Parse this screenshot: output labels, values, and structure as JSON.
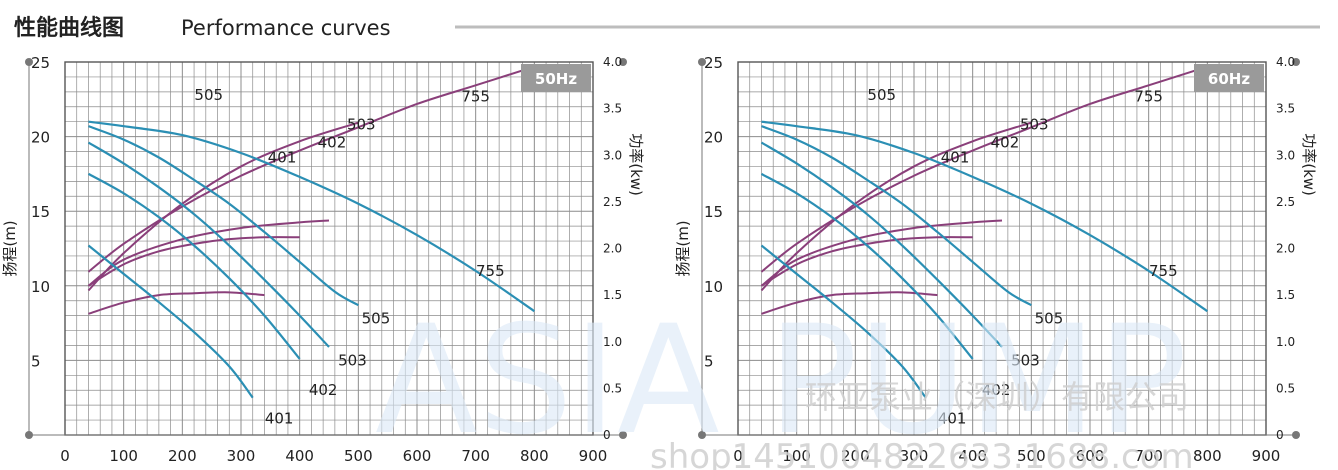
{
  "header": {
    "title_cn": "性能曲线图",
    "title_en": "Performance curves"
  },
  "watermark": {
    "brand": "ASIA PUMP",
    "company": "环亚泵业（深圳）有限公司",
    "url": "shop1451004822633.1688.com"
  },
  "colors": {
    "head_curve": "#2b8fb4",
    "power_curve": "#8a3f7a",
    "grid": "#8c8c8c",
    "badge": "#9a9a9a"
  },
  "chart_data": [
    {
      "type": "line",
      "frequency_label": "50Hz",
      "ylabel": "扬程(m)",
      "y2label": "功率(kw)",
      "xlim": [
        0,
        900
      ],
      "ylim": [
        0,
        25
      ],
      "y2lim": [
        0,
        4.0
      ],
      "x_ticks": [
        "0",
        "100",
        "200",
        "300",
        "400",
        "500",
        "600",
        "700",
        "800",
        "900"
      ],
      "y_ticks": [
        "5",
        "10",
        "15",
        "20",
        "25"
      ],
      "y2_ticks": [
        "0",
        "0.5",
        "1.0",
        "1.5",
        "2.0",
        "2.5",
        "3.0",
        "3.5",
        "4.0"
      ],
      "grid": true,
      "head_curves": [
        {
          "name": "401",
          "points": [
            [
              40,
              12.7
            ],
            [
              100,
              10.8
            ],
            [
              160,
              8.9
            ],
            [
              220,
              6.9
            ],
            [
              280,
              4.6
            ],
            [
              320,
              2.5
            ]
          ]
        },
        {
          "name": "402",
          "points": [
            [
              40,
              17.5
            ],
            [
              100,
              16.2
            ],
            [
              160,
              14.6
            ],
            [
              220,
              12.7
            ],
            [
              280,
              10.5
            ],
            [
              340,
              8.0
            ],
            [
              400,
              5.1
            ]
          ]
        },
        {
          "name": "503",
          "points": [
            [
              40,
              19.6
            ],
            [
              100,
              18.2
            ],
            [
              160,
              16.6
            ],
            [
              220,
              14.8
            ],
            [
              280,
              12.7
            ],
            [
              340,
              10.4
            ],
            [
              400,
              8.0
            ],
            [
              450,
              5.9
            ]
          ]
        },
        {
          "name": "505",
          "points": [
            [
              40,
              20.7
            ],
            [
              100,
              19.8
            ],
            [
              160,
              18.6
            ],
            [
              220,
              17.1
            ],
            [
              280,
              15.5
            ],
            [
              340,
              13.6
            ],
            [
              400,
              11.6
            ],
            [
              460,
              9.6
            ],
            [
              500,
              8.7
            ]
          ]
        },
        {
          "name": "755",
          "points": [
            [
              40,
              21.0
            ],
            [
              100,
              20.7
            ],
            [
              200,
              20.1
            ],
            [
              300,
              18.9
            ],
            [
              400,
              17.3
            ],
            [
              500,
              15.5
            ],
            [
              600,
              13.4
            ],
            [
              700,
              11.0
            ],
            [
              800,
              8.3
            ]
          ]
        }
      ],
      "power_curves": [
        {
          "name": "401",
          "points": [
            [
              40,
              1.3
            ],
            [
              100,
              1.42
            ],
            [
              160,
              1.5
            ],
            [
              220,
              1.52
            ],
            [
              280,
              1.53
            ],
            [
              340,
              1.5
            ]
          ]
        },
        {
          "name": "402",
          "points": [
            [
              40,
              1.6
            ],
            [
              100,
              1.83
            ],
            [
              160,
              1.97
            ],
            [
              220,
              2.05
            ],
            [
              280,
              2.1
            ],
            [
              340,
              2.12
            ],
            [
              400,
              2.12
            ]
          ]
        },
        {
          "name": "503",
          "points": [
            [
              40,
              1.6
            ],
            [
              100,
              1.88
            ],
            [
              200,
              2.1
            ],
            [
              300,
              2.22
            ],
            [
              400,
              2.28
            ],
            [
              450,
              2.3
            ]
          ]
        },
        {
          "name": "505",
          "points": [
            [
              40,
              1.55
            ],
            [
              100,
              1.95
            ],
            [
              200,
              2.48
            ],
            [
              300,
              2.88
            ],
            [
              400,
              3.15
            ],
            [
              500,
              3.35
            ]
          ]
        },
        {
          "name": "755",
          "points": [
            [
              40,
              1.75
            ],
            [
              100,
              2.05
            ],
            [
              200,
              2.45
            ],
            [
              300,
              2.78
            ],
            [
              400,
              3.05
            ],
            [
              500,
              3.3
            ],
            [
              600,
              3.55
            ],
            [
              700,
              3.75
            ],
            [
              800,
              3.95
            ]
          ]
        }
      ],
      "labels": [
        {
          "text": "505",
          "x": 245,
          "y": 22.8
        },
        {
          "text": "755",
          "x": 700,
          "y": 22.7
        },
        {
          "text": "503",
          "x": 505,
          "y": 20.8
        },
        {
          "text": "402",
          "x": 455,
          "y": 19.6
        },
        {
          "text": "401",
          "x": 370,
          "y": 18.6
        },
        {
          "text": "755",
          "x": 725,
          "y": 11.0
        },
        {
          "text": "505",
          "x": 530,
          "y": 7.8
        },
        {
          "text": "503",
          "x": 490,
          "y": 5.0
        },
        {
          "text": "402",
          "x": 440,
          "y": 3.0
        },
        {
          "text": "401",
          "x": 365,
          "y": 1.1
        }
      ]
    },
    {
      "type": "line",
      "frequency_label": "60Hz",
      "ylabel": "扬程(m)",
      "y2label": "功率(kw)",
      "xlim": [
        0,
        900
      ],
      "ylim": [
        0,
        25
      ],
      "y2lim": [
        0,
        4.0
      ],
      "x_ticks": [
        "0",
        "100",
        "200",
        "300",
        "400",
        "500",
        "600",
        "700",
        "800",
        "900"
      ],
      "y_ticks": [
        "5",
        "10",
        "15",
        "20",
        "25"
      ],
      "y2_ticks": [
        "0",
        "0.5",
        "1.0",
        "1.5",
        "2.0",
        "2.5",
        "3.0",
        "3.5",
        "4.0"
      ],
      "grid": true,
      "head_curves": [
        {
          "name": "401",
          "points": [
            [
              40,
              12.7
            ],
            [
              100,
              10.8
            ],
            [
              160,
              8.9
            ],
            [
              220,
              6.9
            ],
            [
              280,
              4.6
            ],
            [
              320,
              2.5
            ]
          ]
        },
        {
          "name": "402",
          "points": [
            [
              40,
              17.5
            ],
            [
              100,
              16.2
            ],
            [
              160,
              14.6
            ],
            [
              220,
              12.7
            ],
            [
              280,
              10.5
            ],
            [
              340,
              8.0
            ],
            [
              400,
              5.1
            ]
          ]
        },
        {
          "name": "503",
          "points": [
            [
              40,
              19.6
            ],
            [
              100,
              18.2
            ],
            [
              160,
              16.6
            ],
            [
              220,
              14.8
            ],
            [
              280,
              12.7
            ],
            [
              340,
              10.4
            ],
            [
              400,
              8.0
            ],
            [
              450,
              5.9
            ]
          ]
        },
        {
          "name": "505",
          "points": [
            [
              40,
              20.7
            ],
            [
              100,
              19.8
            ],
            [
              160,
              18.6
            ],
            [
              220,
              17.1
            ],
            [
              280,
              15.5
            ],
            [
              340,
              13.6
            ],
            [
              400,
              11.6
            ],
            [
              460,
              9.6
            ],
            [
              500,
              8.7
            ]
          ]
        },
        {
          "name": "755",
          "points": [
            [
              40,
              21.0
            ],
            [
              100,
              20.7
            ],
            [
              200,
              20.1
            ],
            [
              300,
              18.9
            ],
            [
              400,
              17.3
            ],
            [
              500,
              15.5
            ],
            [
              600,
              13.4
            ],
            [
              700,
              11.0
            ],
            [
              800,
              8.3
            ]
          ]
        }
      ],
      "power_curves": [
        {
          "name": "401",
          "points": [
            [
              40,
              1.3
            ],
            [
              100,
              1.42
            ],
            [
              160,
              1.5
            ],
            [
              220,
              1.52
            ],
            [
              280,
              1.53
            ],
            [
              340,
              1.5
            ]
          ]
        },
        {
          "name": "402",
          "points": [
            [
              40,
              1.6
            ],
            [
              100,
              1.83
            ],
            [
              160,
              1.97
            ],
            [
              220,
              2.05
            ],
            [
              280,
              2.1
            ],
            [
              340,
              2.12
            ],
            [
              400,
              2.12
            ]
          ]
        },
        {
          "name": "503",
          "points": [
            [
              40,
              1.6
            ],
            [
              100,
              1.88
            ],
            [
              200,
              2.1
            ],
            [
              300,
              2.22
            ],
            [
              400,
              2.28
            ],
            [
              450,
              2.3
            ]
          ]
        },
        {
          "name": "505",
          "points": [
            [
              40,
              1.55
            ],
            [
              100,
              1.95
            ],
            [
              200,
              2.48
            ],
            [
              300,
              2.88
            ],
            [
              400,
              3.15
            ],
            [
              500,
              3.35
            ]
          ]
        },
        {
          "name": "755",
          "points": [
            [
              40,
              1.75
            ],
            [
              100,
              2.05
            ],
            [
              200,
              2.45
            ],
            [
              300,
              2.78
            ],
            [
              400,
              3.05
            ],
            [
              500,
              3.3
            ],
            [
              600,
              3.55
            ],
            [
              700,
              3.75
            ],
            [
              800,
              3.95
            ]
          ]
        }
      ],
      "labels": [
        {
          "text": "505",
          "x": 245,
          "y": 22.8
        },
        {
          "text": "755",
          "x": 700,
          "y": 22.7
        },
        {
          "text": "503",
          "x": 505,
          "y": 20.8
        },
        {
          "text": "402",
          "x": 455,
          "y": 19.6
        },
        {
          "text": "401",
          "x": 370,
          "y": 18.6
        },
        {
          "text": "755",
          "x": 725,
          "y": 11.0
        },
        {
          "text": "505",
          "x": 530,
          "y": 7.8
        },
        {
          "text": "503",
          "x": 490,
          "y": 5.0
        },
        {
          "text": "402",
          "x": 440,
          "y": 3.0
        },
        {
          "text": "401",
          "x": 365,
          "y": 1.1
        }
      ]
    }
  ]
}
